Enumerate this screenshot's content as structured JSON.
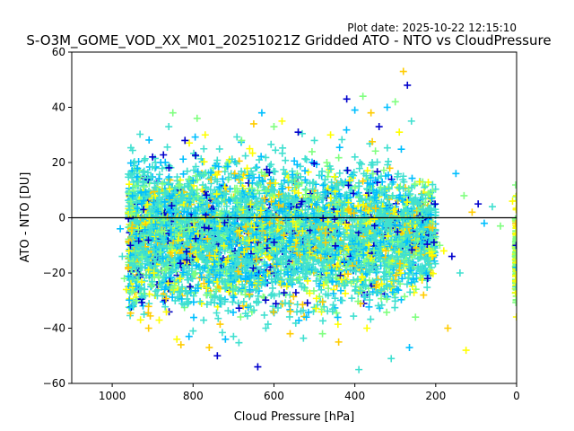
{
  "plot_date": "Plot date: 2025-10-22 12:15:10",
  "chart_data": {
    "type": "scatter",
    "title": "S-O3M_GOME_VOD_XX_M01_20251021Z Gridded ATO - NTO vs CloudPressure",
    "xlabel": "Cloud Pressure [hPa]",
    "ylabel": "ATO - NTO [DU]",
    "xlim": [
      1100,
      0
    ],
    "ylim": [
      -60,
      60
    ],
    "x_inverted": true,
    "xticks": [
      1000,
      800,
      600,
      400,
      200,
      0
    ],
    "yticks": [
      -60,
      -40,
      -20,
      0,
      20,
      40,
      60
    ],
    "xtick_labels": [
      "1000",
      "800",
      "600",
      "400",
      "200",
      "0"
    ],
    "ytick_labels": [
      "−60",
      "−40",
      "−20",
      "0",
      "20",
      "40",
      "60"
    ],
    "reference_line_y": 0,
    "marker": "plus",
    "grid": false,
    "colors": [
      "#0000cc",
      "#00bfff",
      "#40e0d0",
      "#80ff80",
      "#ffff00",
      "#ffcc00"
    ],
    "series": [
      {
        "values_note": "",
        "points": [
          [
            980,
            -4
          ],
          [
            975,
            -14
          ],
          [
            970,
            -22
          ],
          [
            965,
            -26
          ],
          [
            960,
            -18
          ],
          [
            955,
            -10
          ],
          [
            950,
            8
          ],
          [
            945,
            16
          ],
          [
            940,
            -30
          ],
          [
            930,
            -37
          ],
          [
            910,
            -40
          ],
          [
            900,
            22
          ],
          [
            880,
            20
          ],
          [
            860,
            33
          ],
          [
            850,
            38
          ],
          [
            840,
            -44
          ],
          [
            830,
            -46
          ],
          [
            820,
            28
          ],
          [
            810,
            -43
          ],
          [
            800,
            -41
          ],
          [
            790,
            36
          ],
          [
            770,
            30
          ],
          [
            760,
            -47
          ],
          [
            740,
            -50
          ],
          [
            720,
            -44
          ],
          [
            700,
            -43
          ],
          [
            680,
            28
          ],
          [
            660,
            25
          ],
          [
            650,
            34
          ],
          [
            640,
            -54
          ],
          [
            630,
            38
          ],
          [
            620,
            -40
          ],
          [
            600,
            33
          ],
          [
            580,
            35
          ],
          [
            560,
            -42
          ],
          [
            540,
            31
          ],
          [
            520,
            -36
          ],
          [
            500,
            28
          ],
          [
            480,
            -42
          ],
          [
            460,
            30
          ],
          [
            440,
            -45
          ],
          [
            420,
            43
          ],
          [
            400,
            39
          ],
          [
            390,
            -55
          ],
          [
            380,
            44
          ],
          [
            370,
            -40
          ],
          [
            360,
            38
          ],
          [
            340,
            33
          ],
          [
            320,
            40
          ],
          [
            310,
            -51
          ],
          [
            300,
            42
          ],
          [
            290,
            31
          ],
          [
            280,
            53
          ],
          [
            270,
            48
          ],
          [
            265,
            -47
          ],
          [
            260,
            35
          ],
          [
            250,
            -36
          ],
          [
            240,
            13
          ],
          [
            230,
            -28
          ],
          [
            220,
            -22
          ],
          [
            210,
            7
          ],
          [
            200,
            2
          ],
          [
            190,
            -10
          ],
          [
            180,
            -12
          ],
          [
            170,
            -40
          ],
          [
            160,
            -14
          ],
          [
            150,
            16
          ],
          [
            140,
            -20
          ],
          [
            130,
            8
          ],
          [
            125,
            -48
          ],
          [
            110,
            2
          ],
          [
            95,
            5
          ],
          [
            80,
            -2
          ],
          [
            60,
            4
          ],
          [
            40,
            -3
          ],
          [
            10,
            6
          ],
          [
            2,
            -2
          ],
          [
            1,
            -10
          ],
          [
            1,
            -18
          ],
          [
            1,
            -25
          ],
          [
            1,
            -30
          ],
          [
            0,
            8
          ]
        ]
      }
    ]
  }
}
